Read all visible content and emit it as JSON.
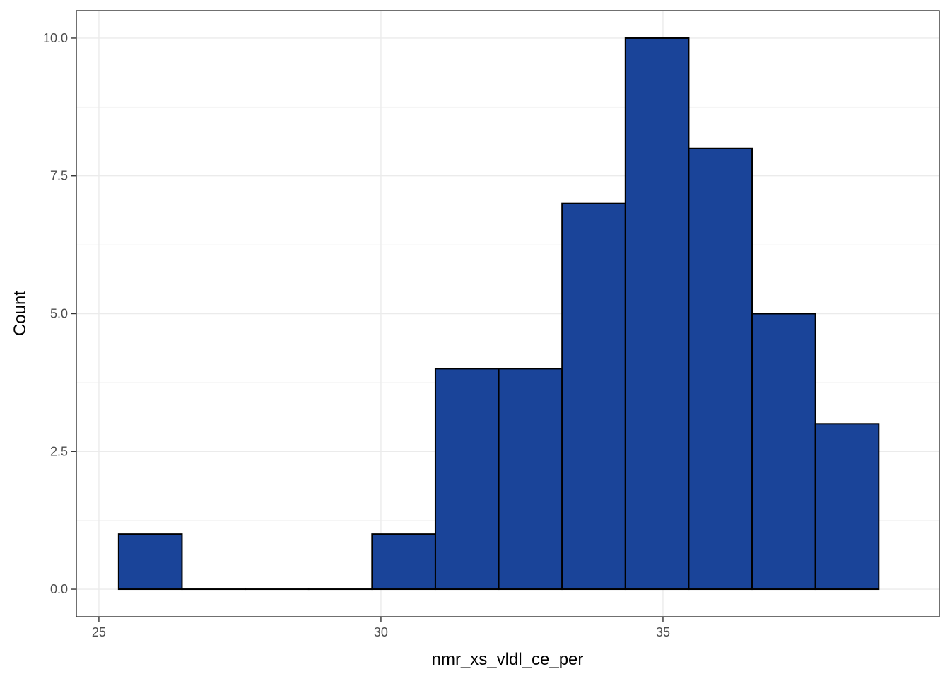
{
  "chart_data": {
    "type": "bar",
    "xlabel": "nmr_xs_vldl_ce_per",
    "ylabel": "Count",
    "xlim": [
      24.6,
      39.9
    ],
    "ylim": [
      -0.5,
      10.5
    ],
    "x_ticks": [
      25,
      30,
      35
    ],
    "x_tick_labels": [
      "25",
      "30",
      "35"
    ],
    "y_ticks": [
      0,
      2.5,
      5,
      7.5,
      10
    ],
    "y_tick_labels": [
      "0.0",
      "2.5",
      "5.0",
      "7.5",
      "10.0"
    ],
    "bin_width": 1.123,
    "bin_start": 25.35,
    "counts": [
      1,
      0,
      0,
      0,
      1,
      4,
      4,
      7,
      10,
      8,
      5,
      3
    ],
    "bar_color": "#1a4499",
    "grid": true,
    "legend": "none"
  }
}
